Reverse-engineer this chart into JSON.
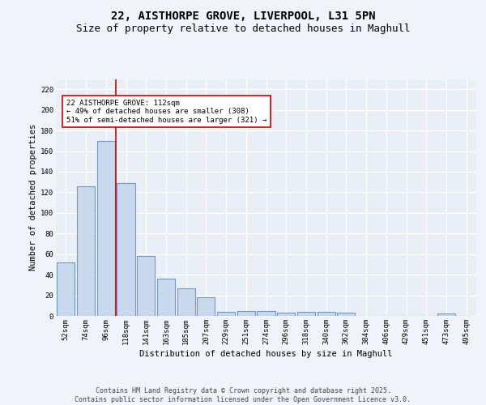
{
  "title_line1": "22, AISTHORPE GROVE, LIVERPOOL, L31 5PN",
  "title_line2": "Size of property relative to detached houses in Maghull",
  "xlabel": "Distribution of detached houses by size in Maghull",
  "ylabel": "Number of detached properties",
  "categories": [
    "52sqm",
    "74sqm",
    "96sqm",
    "118sqm",
    "141sqm",
    "163sqm",
    "185sqm",
    "207sqm",
    "229sqm",
    "251sqm",
    "274sqm",
    "296sqm",
    "318sqm",
    "340sqm",
    "362sqm",
    "384sqm",
    "406sqm",
    "429sqm",
    "451sqm",
    "473sqm",
    "495sqm"
  ],
  "values": [
    52,
    126,
    170,
    129,
    58,
    36,
    27,
    18,
    4,
    5,
    5,
    3,
    4,
    4,
    3,
    0,
    0,
    0,
    0,
    2,
    0
  ],
  "bar_color": "#c9d9ed",
  "bar_edge_color": "#7199c0",
  "bar_edge_width": 0.8,
  "vline_x": 2.5,
  "vline_color": "#cc0000",
  "annotation_text": "22 AISTHORPE GROVE: 112sqm\n← 49% of detached houses are smaller (308)\n51% of semi-detached houses are larger (321) →",
  "annotation_box_color": "#ffffff",
  "annotation_box_edge": "#cc0000",
  "ylim": [
    0,
    230
  ],
  "yticks": [
    0,
    20,
    40,
    60,
    80,
    100,
    120,
    140,
    160,
    180,
    200,
    220
  ],
  "background_color": "#eaeff7",
  "grid_color": "#ffffff",
  "fig_background": "#f0f4fa",
  "footer_text": "Contains HM Land Registry data © Crown copyright and database right 2025.\nContains public sector information licensed under the Open Government Licence v3.0.",
  "title_fontsize": 10,
  "subtitle_fontsize": 9,
  "label_fontsize": 7.5,
  "tick_fontsize": 6.5,
  "footer_fontsize": 6,
  "annot_fontsize": 6.5
}
